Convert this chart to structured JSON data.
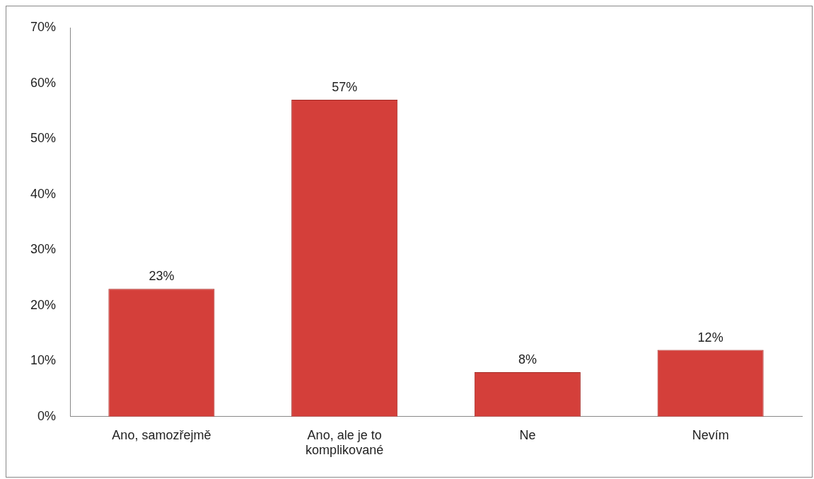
{
  "chart_data": {
    "type": "bar",
    "categories": [
      "Ano, samozřejmě",
      "Ano, ale je to komplikované",
      "Ne",
      "Nevím"
    ],
    "values": [
      23,
      57,
      8,
      12
    ],
    "color": "#d43f3a",
    "ylim": [
      0,
      70
    ],
    "yticks": [
      {
        "value": 0,
        "label": "0%"
      },
      {
        "value": 10,
        "label": "10%"
      },
      {
        "value": 20,
        "label": "20%"
      },
      {
        "value": 30,
        "label": "30%"
      },
      {
        "value": 40,
        "label": "40%"
      },
      {
        "value": 50,
        "label": "50%"
      },
      {
        "value": 60,
        "label": "60%"
      },
      {
        "value": 70,
        "label": "70%"
      }
    ],
    "value_labels": [
      "23%",
      "57%",
      "8%",
      "12%"
    ],
    "grid": false
  }
}
